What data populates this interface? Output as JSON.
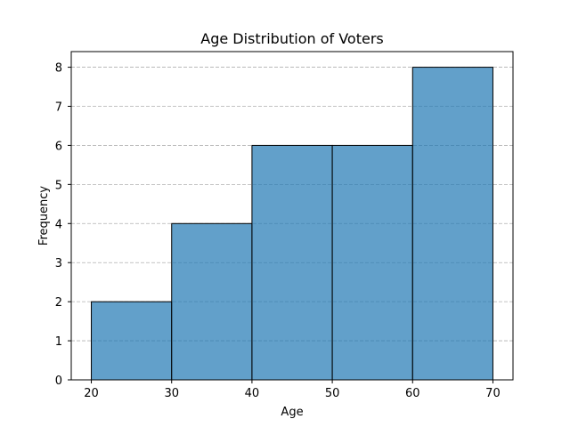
{
  "chart_data": {
    "type": "bar",
    "title": "Age Distribution of Voters",
    "xlabel": "Age",
    "ylabel": "Frequency",
    "bins": [
      [
        20,
        30
      ],
      [
        30,
        40
      ],
      [
        40,
        50
      ],
      [
        50,
        60
      ],
      [
        60,
        70
      ]
    ],
    "values": [
      2,
      4,
      6,
      6,
      8
    ],
    "xlim": [
      17.5,
      72.5
    ],
    "ylim": [
      0,
      8.4
    ],
    "x_ticks": [
      "20",
      "30",
      "40",
      "50",
      "60",
      "70"
    ],
    "y_ticks": [
      "0",
      "1",
      "2",
      "3",
      "4",
      "5",
      "6",
      "7",
      "8"
    ],
    "grid": "horizontal dashed",
    "bar_color": "#1f77b4",
    "bar_opacity": 0.7,
    "edge_color": "#000000",
    "grid_color": "#b0b0b0"
  }
}
